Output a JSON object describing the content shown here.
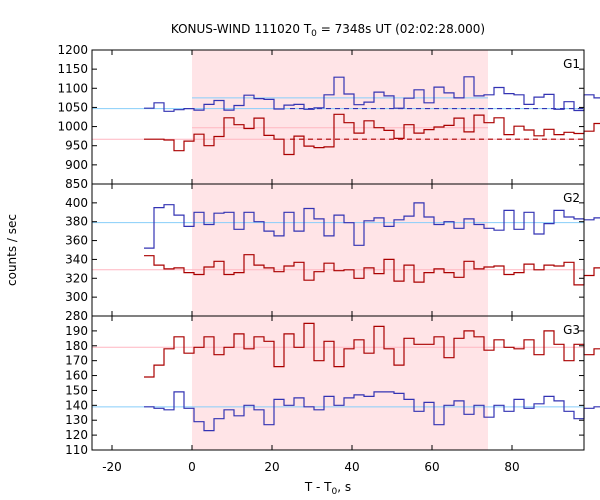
{
  "chart_data": {
    "type": "line",
    "title_prefix": "KONUS-WIND 111020 T",
    "title_sub": "0",
    "title_suffix": " = 7348s UT (02:02:28.000)",
    "xlabel_prefix": "T - T",
    "xlabel_sub": "0",
    "xlabel_suffix": ", s",
    "ylabel": "counts / sec",
    "xlim": [
      -25,
      98
    ],
    "xticks": [
      -20,
      0,
      20,
      40,
      60,
      80
    ],
    "xticklabels": [
      "-20",
      "0",
      "20",
      "40",
      "60",
      "80"
    ],
    "shaded_interval": [
      0,
      74
    ],
    "colors": {
      "blue": "#3333b3",
      "red": "#aa0000",
      "cyan": "#87cefa",
      "pink": "#ffb6c1",
      "shade": "#ffe4e7"
    },
    "panels": [
      {
        "label": "G1",
        "ylim": [
          850,
          1200
        ],
        "yticks": [
          850,
          900,
          950,
          1000,
          1050,
          1100,
          1150,
          1200
        ],
        "yticklabels": [
          "850",
          "900",
          "950",
          "1000",
          "1050",
          "1100",
          "1150",
          "1200"
        ],
        "bg_blue": 1047,
        "bg_red": 967,
        "dashed": [
          {
            "x": [
              24.5,
              98
            ],
            "y": 1047,
            "color": "blue"
          },
          {
            "x": [
              24.5,
              98
            ],
            "y": 967,
            "color": "red"
          }
        ],
        "fit_lines": [
          {
            "x": [
              0,
              74
            ],
            "y": 1075,
            "color": "cyan"
          },
          {
            "x": [
              0,
              74
            ],
            "y": 997,
            "color": "pink"
          }
        ],
        "series": [
          {
            "color": "blue",
            "x0": -12,
            "dx": 2.5,
            "values": [
              1048,
              1062,
              1040,
              1044,
              1047,
              1043,
              1058,
              1068,
              1043,
              1055,
              1082,
              1073,
              1071,
              1046,
              1056,
              1058,
              1045,
              1049,
              1083,
              1129,
              1085,
              1057,
              1064,
              1090,
              1080,
              1048,
              1074,
              1096,
              1062,
              1103,
              1088,
              1075,
              1130,
              1080,
              1083,
              1102,
              1086,
              1083,
              1058,
              1077,
              1084,
              1045,
              1065,
              1042,
              1083,
              1075,
              1070,
              1062,
              1073,
              1046,
              1028,
              1055,
              1048,
              1057,
              1041,
              1060
            ]
          },
          {
            "color": "red",
            "x0": -12,
            "dx": 2.5,
            "values": [
              967,
              967,
              965,
              937,
              962,
              980,
              950,
              974,
              1023,
              1005,
              995,
              1022,
              977,
              967,
              927,
              975,
              949,
              945,
              947,
              1032,
              1010,
              983,
              1015,
              997,
              990,
              969,
              1005,
              983,
              992,
              999,
              1003,
              1022,
              986,
              1030,
              1010,
              1023,
              979,
              1001,
              991,
              976,
              993,
              979,
              985,
              982,
              988,
              1008,
              995,
              985,
              978,
              1002,
              1010,
              1004,
              1020,
              985,
              970,
              991
            ]
          }
        ]
      },
      {
        "label": "G2",
        "ylim": [
          280,
          420
        ],
        "yticks": [
          280,
          300,
          320,
          340,
          360,
          380,
          400
        ],
        "yticklabels": [
          "280",
          "300",
          "320",
          "340",
          "360",
          "380",
          "400"
        ],
        "bg_blue": 379,
        "bg_red": 329,
        "dashed": [],
        "fit_lines": [],
        "series": [
          {
            "color": "blue",
            "x0": -12,
            "dx": 2.5,
            "values": [
              352,
              395,
              398,
              387,
              375,
              390,
              377,
              389,
              390,
              372,
              390,
              380,
              370,
              365,
              390,
              370,
              394,
              383,
              365,
              387,
              379,
              355,
              381,
              384,
              375,
              382,
              386,
              400,
              385,
              377,
              380,
              373,
              383,
              377,
              373,
              371,
              392,
              372,
              390,
              367,
              378,
              392,
              385,
              383,
              382,
              384,
              382,
              378,
              400,
              406,
              388,
              362,
              388,
              377,
              382,
              390
            ]
          },
          {
            "color": "red",
            "x0": -12,
            "dx": 2.5,
            "values": [
              344,
              334,
              330,
              331,
              326,
              324,
              332,
              338,
              324,
              326,
              345,
              334,
              331,
              327,
              333,
              337,
              318,
              327,
              336,
              328,
              329,
              320,
              331,
              325,
              340,
              317,
              334,
              316,
              326,
              330,
              326,
              321,
              338,
              330,
              332,
              333,
              324,
              326,
              335,
              329,
              334,
              333,
              337,
              313,
              323,
              331,
              327,
              319,
              330,
              327,
              329,
              321,
              333,
              322,
              331,
              327
            ]
          }
        ]
      },
      {
        "label": "G3",
        "ylim": [
          110,
          200
        ],
        "yticks": [
          110,
          120,
          130,
          140,
          150,
          160,
          170,
          180,
          190
        ],
        "yticklabels": [
          "110",
          "120",
          "130",
          "140",
          "150",
          "160",
          "170",
          "180",
          "190"
        ],
        "bg_blue": 139,
        "bg_red": 179,
        "dashed": [],
        "fit_lines": [],
        "series": [
          {
            "color": "blue",
            "x0": -12,
            "dx": 2.5,
            "values": [
              139,
              138,
              137,
              149,
              138,
              129,
              123,
              131,
              137,
              133,
              140,
              137,
              127,
              144,
              140,
              145,
              139,
              137,
              146,
              140,
              145,
              147,
              146,
              149,
              149,
              148,
              144,
              136,
              142,
              127,
              140,
              143,
              134,
              140,
              132,
              140,
              136,
              144,
              138,
              141,
              146,
              143,
              136,
              131,
              138,
              139,
              142,
              125,
              131,
              139,
              140,
              137,
              140,
              130,
              139,
              141
            ]
          },
          {
            "color": "red",
            "x0": -12,
            "dx": 2.5,
            "values": [
              159,
              167,
              178,
              186,
              175,
              179,
              186,
              174,
              179,
              188,
              178,
              186,
              183,
              166,
              188,
              179,
              195,
              170,
              183,
              166,
              178,
              184,
              175,
              193,
              178,
              167,
              185,
              181,
              181,
              186,
              172,
              185,
              190,
              186,
              177,
              184,
              179,
              178,
              184,
              174,
              190,
              181,
              170,
              181,
              174,
              178,
              181,
              185,
              188,
              178,
              178,
              174,
              180,
              180,
              185,
              178
            ]
          }
        ]
      }
    ]
  }
}
